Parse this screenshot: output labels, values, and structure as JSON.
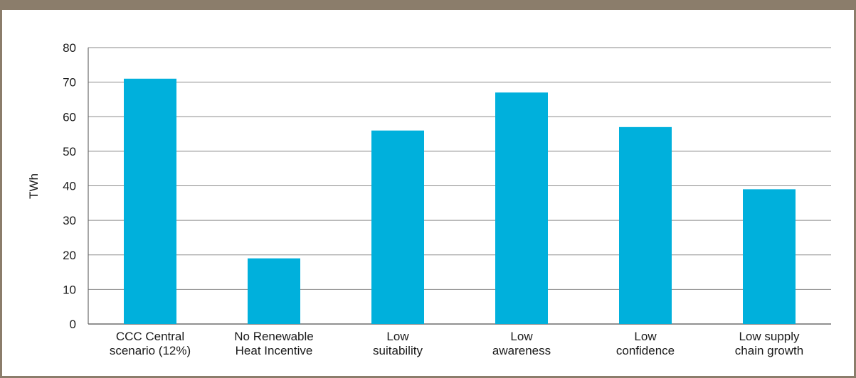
{
  "chart_data": {
    "type": "bar",
    "title": "",
    "xlabel": "",
    "ylabel": "TWh",
    "ylim": [
      0,
      80
    ],
    "yticks": [
      0,
      10,
      20,
      30,
      40,
      50,
      60,
      70,
      80
    ],
    "grid": true,
    "categories": [
      [
        "CCC Central",
        "scenario (12%)"
      ],
      [
        "No Renewable",
        "Heat Incentive"
      ],
      [
        "Low",
        "suitability"
      ],
      [
        "Low",
        "awareness"
      ],
      [
        "Low",
        "confidence"
      ],
      [
        "Low supply",
        "chain growth"
      ]
    ],
    "values": [
      71,
      19,
      56,
      67,
      57,
      39
    ],
    "bar_color": "#00b0dc",
    "frame_color": "#8b7d6b"
  }
}
